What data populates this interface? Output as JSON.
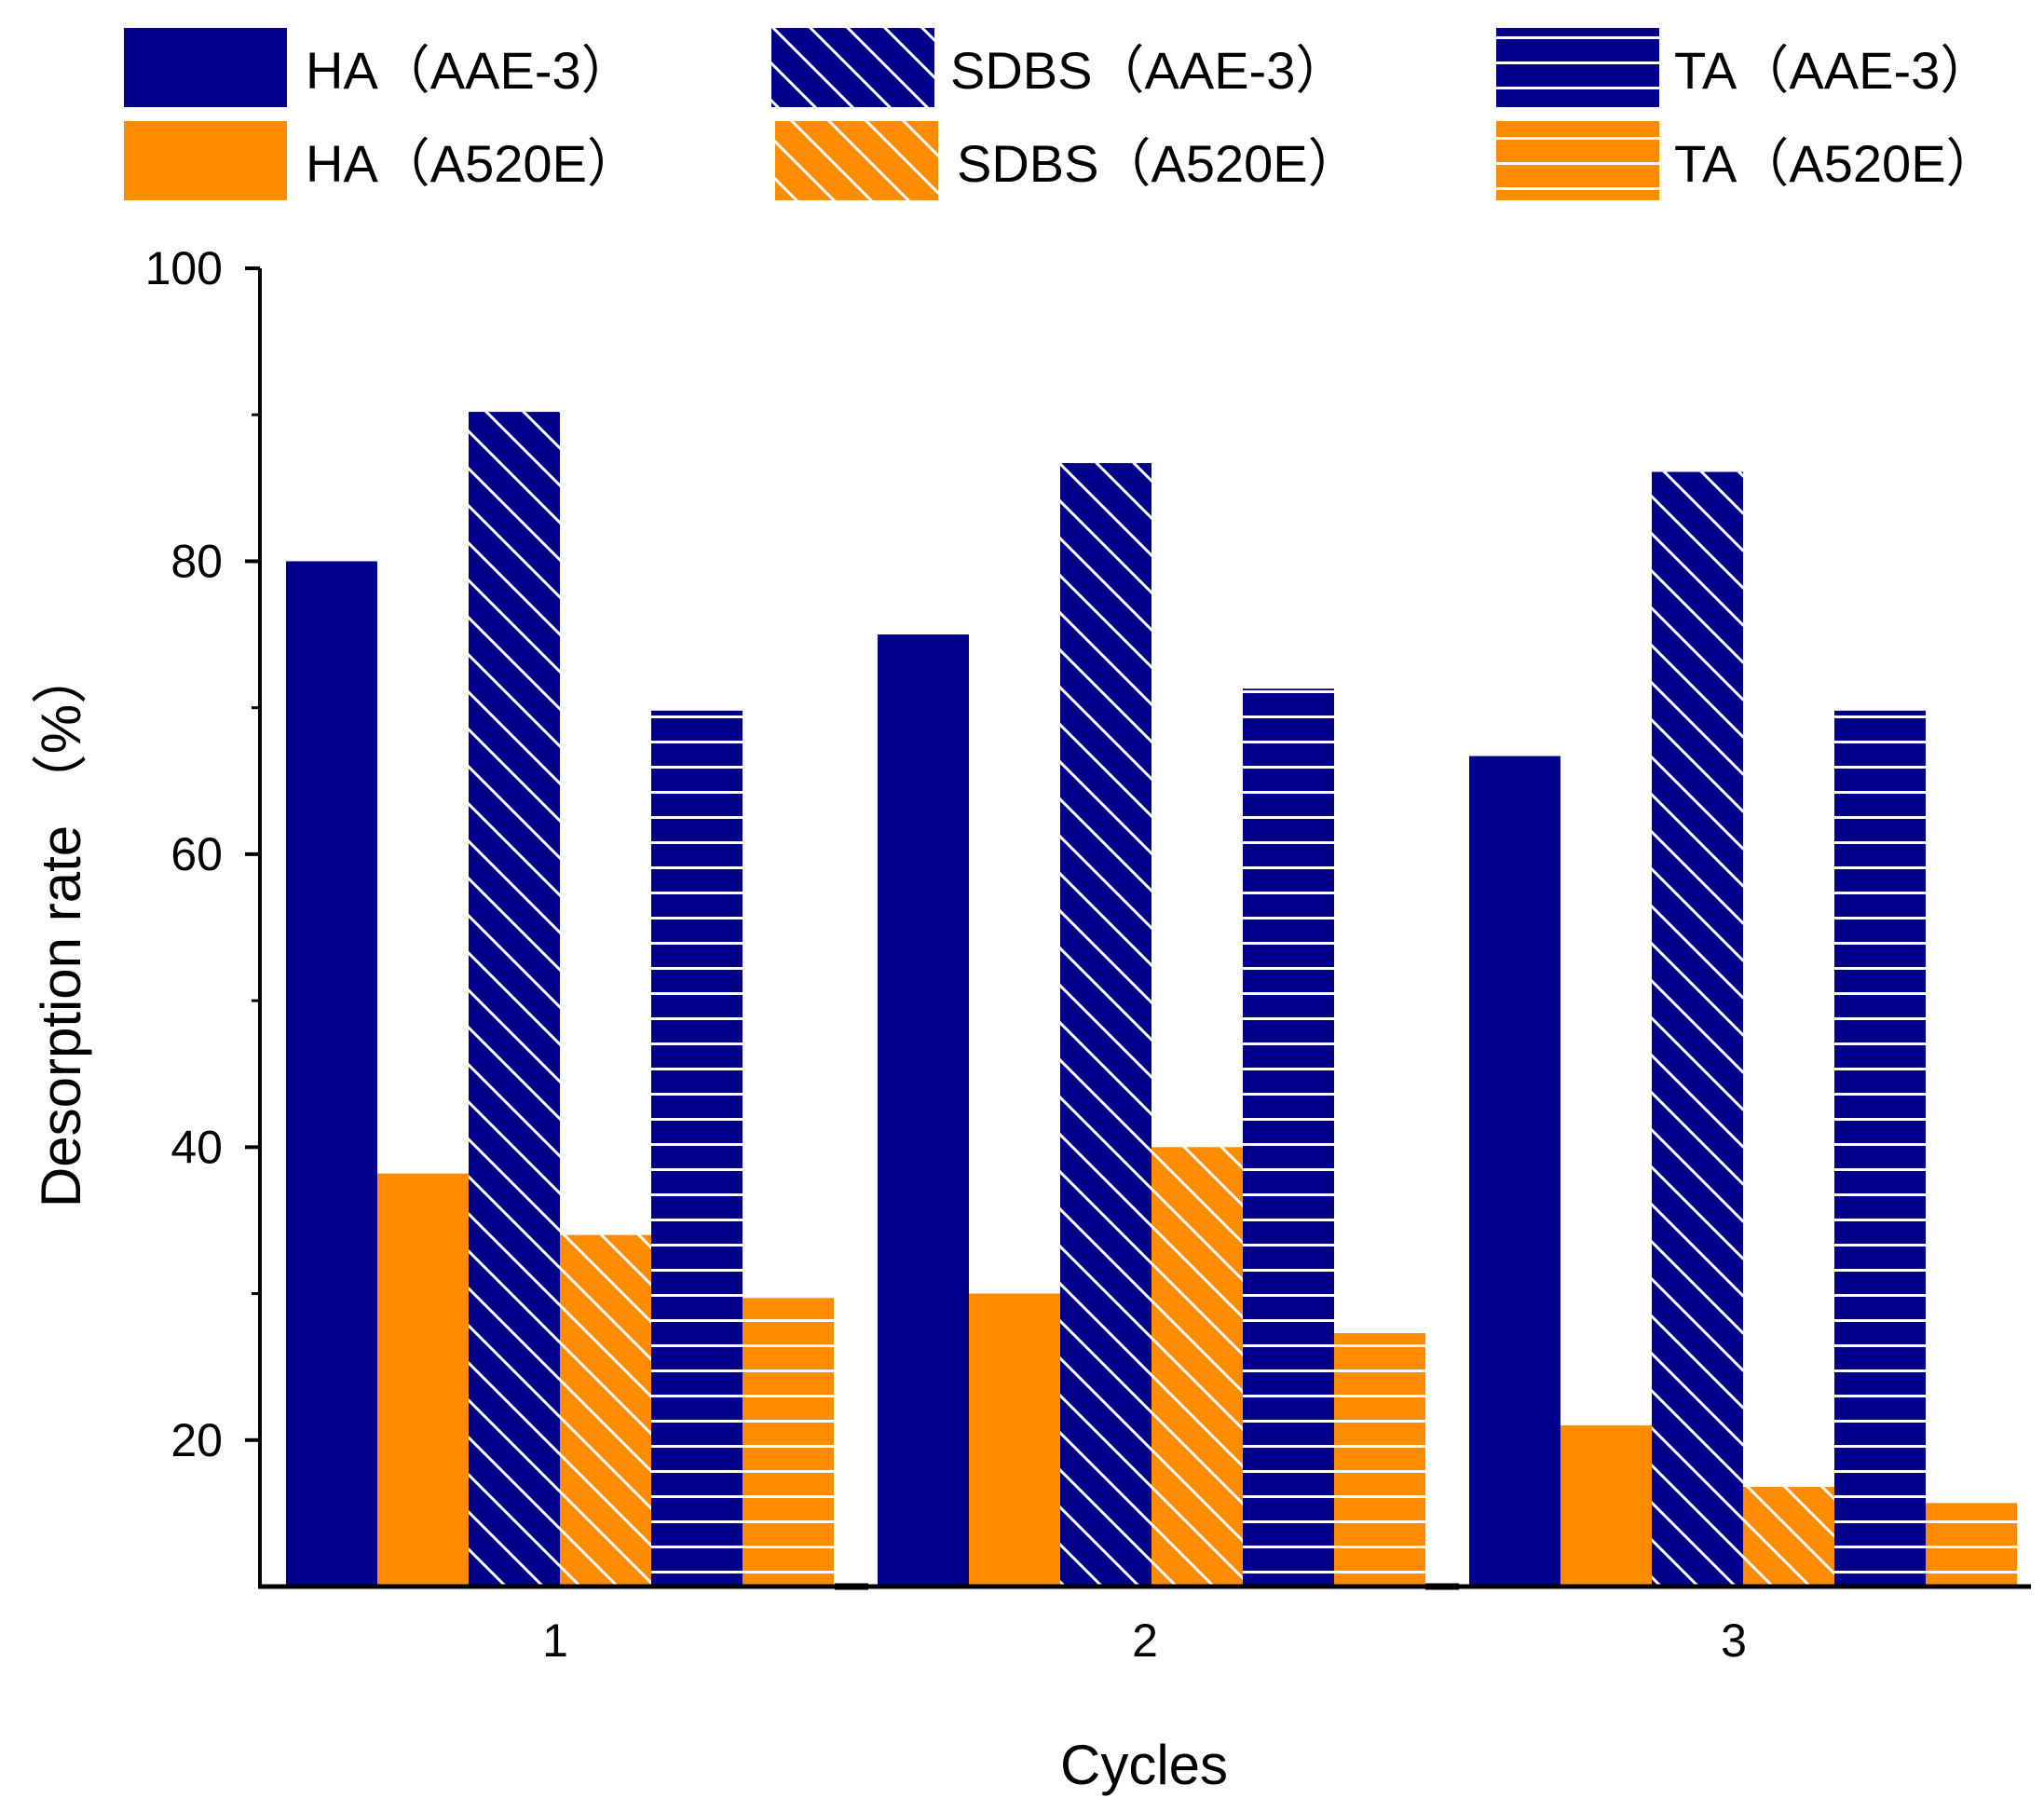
{
  "chart_data": {
    "type": "bar",
    "title": "",
    "xlabel": "Cycles",
    "ylabel": "Desorption rate （%）",
    "categories": [
      "1",
      "2",
      "3"
    ],
    "ylim": [
      10,
      100
    ],
    "yticks": [
      "20",
      "40",
      "60",
      "80",
      "100"
    ],
    "ytick_values": [
      20,
      40,
      60,
      80,
      100
    ],
    "colors": {
      "AAE-3": "#00008b",
      "A520E": "#ff8c00",
      "hatch_line": "#ffffff",
      "axis": "#000000"
    },
    "legend_position": "top",
    "bar_order": [
      "HA (AAE-3)",
      "HA (A520E)",
      "SDBS (AAE-3)",
      "SDBS (A520E)",
      "TA (AAE-3)",
      "TA (A520E)"
    ],
    "series": [
      {
        "name": "HA (AAE-3)",
        "label": "HA（AAE-3）",
        "color": "#00008b",
        "pattern": "solid",
        "values": [
          80,
          75,
          66.7
        ]
      },
      {
        "name": "SDBS (AAE-3)",
        "label": "SDBS（AAE-3）",
        "color": "#00008b",
        "pattern": "diagonal",
        "values": [
          90.2,
          86.7,
          86.1
        ]
      },
      {
        "name": "TA (AAE-3)",
        "label": "TA（AAE-3）",
        "color": "#00008b",
        "pattern": "horizontal",
        "values": [
          69.8,
          71.3,
          69.8
        ]
      },
      {
        "name": "HA (A520E)",
        "label": "HA（A520E）",
        "color": "#ff8c00",
        "pattern": "solid",
        "values": [
          38.2,
          30,
          21
        ]
      },
      {
        "name": "SDBS (A520E)",
        "label": "SDBS（A520E）",
        "color": "#ff8c00",
        "pattern": "diagonal",
        "values": [
          34,
          40,
          16.8
        ]
      },
      {
        "name": "TA (A520E)",
        "label": "TA（A520E）",
        "color": "#ff8c00",
        "pattern": "horizontal",
        "values": [
          29.7,
          27.3,
          15.7
        ]
      }
    ]
  }
}
